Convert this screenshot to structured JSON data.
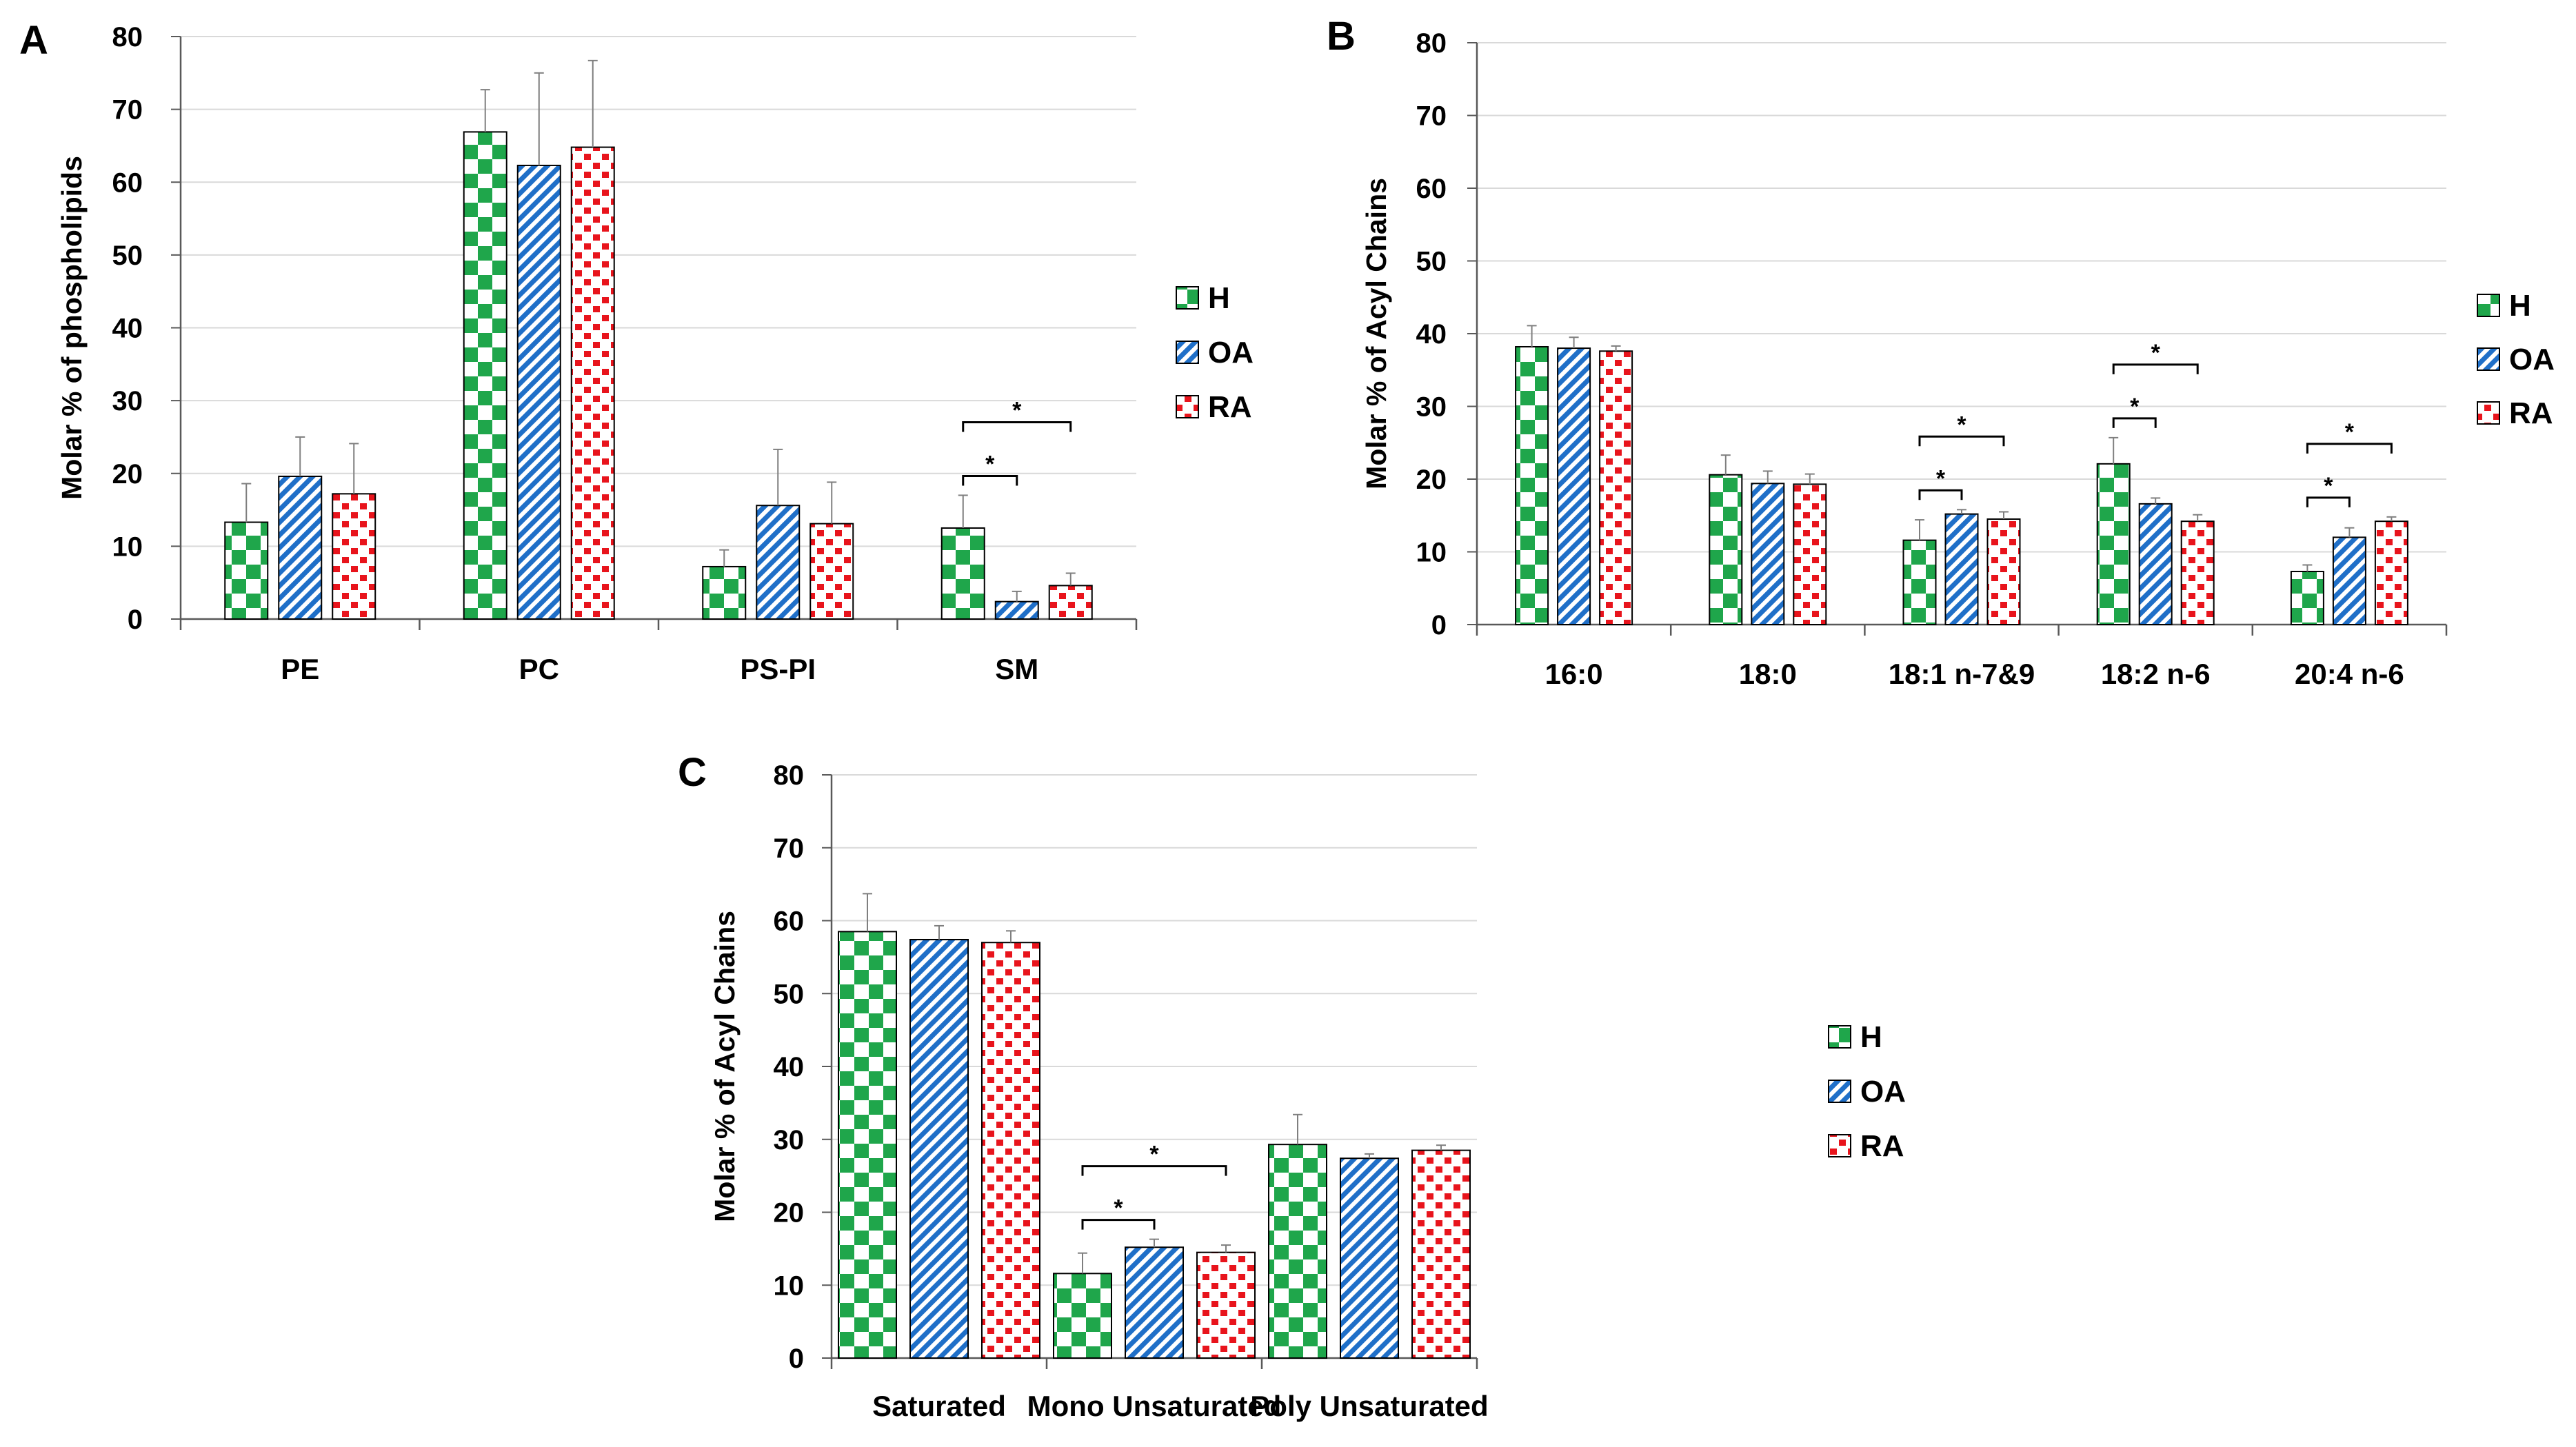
{
  "colors": {
    "H": "#1fa64b",
    "OA": "#1f6fc8",
    "RA": "#e8141c",
    "grid": "#d9d9d9",
    "axis": "#595959",
    "error": "#7f7f7f",
    "bracket": "#000000"
  },
  "legend": [
    "H",
    "OA",
    "RA"
  ],
  "chart_data": [
    {
      "id": "A",
      "panel_label": "A",
      "type": "bar",
      "title": "",
      "xlabel": "",
      "ylabel": "Molar % of phospholipids",
      "ylim": [
        0,
        80
      ],
      "yticks": [
        0,
        10,
        20,
        30,
        40,
        50,
        60,
        70,
        80
      ],
      "grid": true,
      "legend_position": "right",
      "categories": [
        "PE",
        "PC",
        "PS-PI",
        "SM"
      ],
      "series": [
        {
          "name": "H",
          "values": [
            13.3,
            66.9,
            7.2,
            12.5
          ],
          "errors": [
            5.3,
            5.8,
            2.3,
            4.5
          ]
        },
        {
          "name": "OA",
          "values": [
            19.6,
            62.3,
            15.6,
            2.4
          ],
          "errors": [
            5.4,
            12.7,
            7.7,
            1.4
          ]
        },
        {
          "name": "RA",
          "values": [
            17.2,
            64.8,
            13.1,
            4.6
          ],
          "errors": [
            6.9,
            11.9,
            5.7,
            1.7
          ]
        }
      ],
      "significance": [
        {
          "category": "SM",
          "from": "H",
          "to": "OA",
          "label": "*"
        },
        {
          "category": "SM",
          "from": "H",
          "to": "RA",
          "label": "*"
        }
      ]
    },
    {
      "id": "B",
      "panel_label": "B",
      "type": "bar",
      "title": "",
      "xlabel": "",
      "ylabel": "Molar % of Acyl Chains",
      "ylim": [
        0,
        80
      ],
      "yticks": [
        0,
        10,
        20,
        30,
        40,
        50,
        60,
        70,
        80
      ],
      "grid": true,
      "legend_position": "right",
      "categories": [
        "16:0",
        "18:0",
        "18:1 n-7&9",
        "18:2 n-6",
        "20:4 n-6"
      ],
      "series": [
        {
          "name": "H",
          "values": [
            38.2,
            20.6,
            11.6,
            22.1,
            7.3
          ],
          "errors": [
            2.9,
            2.7,
            2.8,
            3.6,
            0.9
          ]
        },
        {
          "name": "OA",
          "values": [
            38.0,
            19.4,
            15.2,
            16.6,
            12.0
          ],
          "errors": [
            1.5,
            1.7,
            0.6,
            0.8,
            1.3
          ]
        },
        {
          "name": "RA",
          "values": [
            37.6,
            19.3,
            14.5,
            14.2,
            14.2
          ],
          "errors": [
            0.7,
            1.4,
            1.0,
            0.9,
            0.6
          ]
        }
      ],
      "significance": [
        {
          "category": "18:1 n-7&9",
          "from": "H",
          "to": "OA",
          "label": "*"
        },
        {
          "category": "18:1 n-7&9",
          "from": "H",
          "to": "RA",
          "label": "*"
        },
        {
          "category": "18:2 n-6",
          "from": "H",
          "to": "OA",
          "label": "*"
        },
        {
          "category": "18:2 n-6",
          "from": "H",
          "to": "RA",
          "label": "*"
        },
        {
          "category": "20:4 n-6",
          "from": "H",
          "to": "OA",
          "label": "*"
        },
        {
          "category": "20:4 n-6",
          "from": "H",
          "to": "RA",
          "label": "*"
        }
      ]
    },
    {
      "id": "C",
      "panel_label": "C",
      "type": "bar",
      "title": "",
      "xlabel": "",
      "ylabel": "Molar % of Acyl Chains",
      "ylim": [
        0,
        80
      ],
      "yticks": [
        0,
        10,
        20,
        30,
        40,
        50,
        60,
        70,
        80
      ],
      "grid": true,
      "legend_position": "right",
      "categories": [
        "Saturated",
        "Mono Unsaturated",
        "Poly Unsaturated"
      ],
      "series": [
        {
          "name": "H",
          "values": [
            58.5,
            11.6,
            29.3
          ],
          "errors": [
            5.2,
            2.8,
            4.1
          ]
        },
        {
          "name": "OA",
          "values": [
            57.4,
            15.2,
            27.4
          ],
          "errors": [
            1.9,
            1.1,
            0.6
          ]
        },
        {
          "name": "RA",
          "values": [
            57.0,
            14.5,
            28.5
          ],
          "errors": [
            1.6,
            1.0,
            0.7
          ]
        }
      ],
      "significance": [
        {
          "category": "Mono Unsaturated",
          "from": "H",
          "to": "OA",
          "label": "*"
        },
        {
          "category": "Mono Unsaturated",
          "from": "H",
          "to": "RA",
          "label": "*"
        }
      ]
    }
  ]
}
